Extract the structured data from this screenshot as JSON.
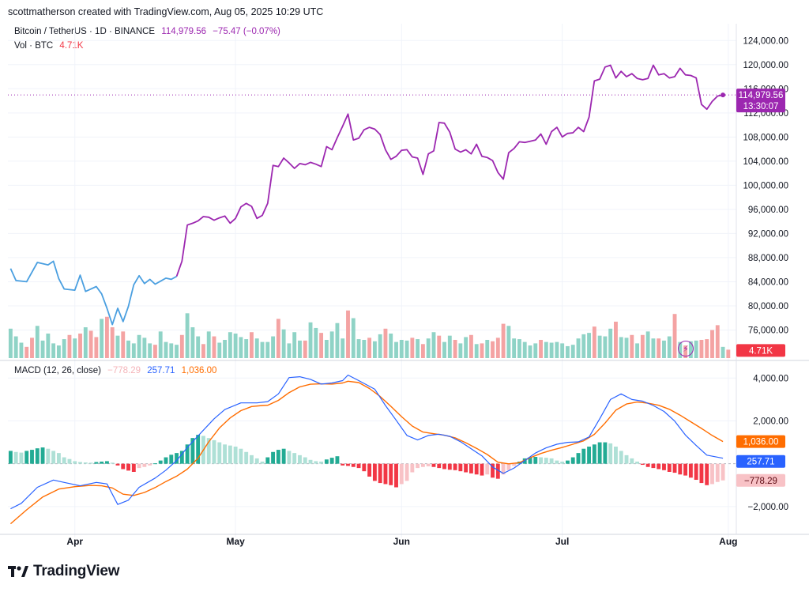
{
  "header": {
    "credit": "scottmatherson created with TradingView.com, Aug 05, 2025 10:29 UTC"
  },
  "legend": {
    "symbol": "Bitcoin / TetherUS · 1D · BINANCE",
    "last": "114,979.56",
    "change": "−75.47 (−0.07%)",
    "vol_label": "Vol · BTC",
    "vol_value": "4.71K",
    "macd_label": "MACD (12, 26, close)",
    "macd_hist": "−778.29",
    "macd_line": "257.71",
    "macd_signal": "1,036.00"
  },
  "badges": {
    "price": "114,979.56",
    "countdown": "13:30:07",
    "volume": "4.71K",
    "signal": "1,036.00",
    "macd": "257.71",
    "hist": "−778.29"
  },
  "colors": {
    "price_blue": "#4a9fe0",
    "price_purple": "#9c27b0",
    "vol_up": "#8fd3c6",
    "vol_down": "#f4a3a3",
    "macd_line": "#2962ff",
    "signal_line": "#ff6d00",
    "hist_up_strong": "#22ab94",
    "hist_up_weak": "#aee0d6",
    "hist_down_strong": "#f23645",
    "hist_down_weak": "#f8c2c6"
  },
  "logo": {
    "text": "TradingView"
  },
  "chart_data": {
    "type": "line",
    "title": "Bitcoin / TetherUS · 1D · BINANCE",
    "x_start": "2025-03-20",
    "x_end": "2025-08-05",
    "time_labels": [
      {
        "label": "Apr",
        "index": 12
      },
      {
        "label": "May",
        "index": 42
      },
      {
        "label": "Jun",
        "index": 73
      },
      {
        "label": "Jul",
        "index": 103
      },
      {
        "label": "Aug",
        "index": 134
      }
    ],
    "price_axis": {
      "ylim": [
        72000,
        126000
      ],
      "ticks": [
        "124,000.00",
        "120,000.00",
        "116,000.00",
        "112,000.00",
        "108,000.00",
        "104,000.00",
        "100,000.00",
        "96,000.00",
        "92,000.00",
        "88,000.00",
        "84,000.00",
        "80,000.00",
        "76,000.00"
      ],
      "tick_values": [
        124000,
        120000,
        116000,
        112000,
        108000,
        104000,
        100000,
        96000,
        92000,
        88000,
        84000,
        80000,
        76000
      ]
    },
    "macd_axis": {
      "ylim": [
        -3000,
        4600
      ],
      "ticks": [
        "4,000.00",
        "2,000.00",
        "−2,000.00"
      ],
      "tick_values": [
        4000,
        2000,
        -2000
      ]
    },
    "price_anchors": [
      [
        0,
        86200
      ],
      [
        1,
        84200
      ],
      [
        3,
        84000
      ],
      [
        5,
        87200
      ],
      [
        7,
        86800
      ],
      [
        8,
        87400
      ],
      [
        9,
        84500
      ],
      [
        10,
        82800
      ],
      [
        12,
        82600
      ],
      [
        13,
        85100
      ],
      [
        14,
        82400
      ],
      [
        16,
        83200
      ],
      [
        17,
        82000
      ],
      [
        18,
        79600
      ],
      [
        19,
        76900
      ],
      [
        20,
        79600
      ],
      [
        21,
        77400
      ],
      [
        22,
        79900
      ],
      [
        23,
        83500
      ],
      [
        24,
        85000
      ],
      [
        25,
        83700
      ],
      [
        26,
        84400
      ],
      [
        27,
        83600
      ],
      [
        28,
        84100
      ],
      [
        29,
        84600
      ],
      [
        30,
        84400
      ],
      [
        31,
        84900
      ],
      [
        32,
        87400
      ],
      [
        33,
        93400
      ],
      [
        34,
        93700
      ],
      [
        35,
        94100
      ],
      [
        36,
        94800
      ],
      [
        37,
        94700
      ],
      [
        38,
        94200
      ],
      [
        39,
        94600
      ],
      [
        40,
        94900
      ],
      [
        41,
        93700
      ],
      [
        42,
        94500
      ],
      [
        43,
        96400
      ],
      [
        44,
        97000
      ],
      [
        45,
        96500
      ],
      [
        46,
        94500
      ],
      [
        47,
        95000
      ],
      [
        48,
        97000
      ],
      [
        49,
        103300
      ],
      [
        50,
        103100
      ],
      [
        51,
        104500
      ],
      [
        52,
        103700
      ],
      [
        53,
        102800
      ],
      [
        54,
        103600
      ],
      [
        55,
        103400
      ],
      [
        56,
        103800
      ],
      [
        57,
        103500
      ],
      [
        58,
        103100
      ],
      [
        59,
        106400
      ],
      [
        60,
        105900
      ],
      [
        61,
        107900
      ],
      [
        62,
        109800
      ],
      [
        63,
        111800
      ],
      [
        64,
        107500
      ],
      [
        65,
        107800
      ],
      [
        66,
        109200
      ],
      [
        67,
        109600
      ],
      [
        68,
        109300
      ],
      [
        69,
        108400
      ],
      [
        70,
        105900
      ],
      [
        71,
        104300
      ],
      [
        72,
        104800
      ],
      [
        73,
        105800
      ],
      [
        74,
        105900
      ],
      [
        75,
        104700
      ],
      [
        76,
        104500
      ],
      [
        77,
        101800
      ],
      [
        78,
        105200
      ],
      [
        79,
        105700
      ],
      [
        80,
        110400
      ],
      [
        81,
        110300
      ],
      [
        82,
        108800
      ],
      [
        83,
        106000
      ],
      [
        84,
        105500
      ],
      [
        85,
        105900
      ],
      [
        86,
        105200
      ],
      [
        87,
        106800
      ],
      [
        88,
        104800
      ],
      [
        89,
        104600
      ],
      [
        90,
        104100
      ],
      [
        91,
        102100
      ],
      [
        92,
        101000
      ],
      [
        93,
        105400
      ],
      [
        94,
        106100
      ],
      [
        95,
        107200
      ],
      [
        96,
        107100
      ],
      [
        97,
        107300
      ],
      [
        98,
        107500
      ],
      [
        99,
        108500
      ],
      [
        100,
        106800
      ],
      [
        101,
        108900
      ],
      [
        102,
        109600
      ],
      [
        103,
        108000
      ],
      [
        104,
        108600
      ],
      [
        105,
        108700
      ],
      [
        106,
        109600
      ],
      [
        107,
        108900
      ],
      [
        108,
        111300
      ],
      [
        109,
        117300
      ],
      [
        110,
        117600
      ],
      [
        111,
        119600
      ],
      [
        112,
        119900
      ],
      [
        113,
        117800
      ],
      [
        114,
        118900
      ],
      [
        115,
        118000
      ],
      [
        116,
        118500
      ],
      [
        117,
        117700
      ],
      [
        118,
        117500
      ],
      [
        119,
        117700
      ],
      [
        120,
        119900
      ],
      [
        121,
        118300
      ],
      [
        122,
        118500
      ],
      [
        123,
        117800
      ],
      [
        124,
        118000
      ],
      [
        125,
        119400
      ],
      [
        126,
        118300
      ],
      [
        127,
        118200
      ],
      [
        128,
        117800
      ],
      [
        129,
        113400
      ],
      [
        130,
        112600
      ],
      [
        131,
        113900
      ],
      [
        132,
        114800
      ],
      [
        133,
        114979
      ]
    ],
    "color_switch_index": 31,
    "volume_bars": [
      4.2,
      3.1,
      2.2,
      1.6,
      2.9,
      4.6,
      2.5,
      3.5,
      2.1,
      1.8,
      2.7,
      3.3,
      2.8,
      3.5,
      4.4,
      3.9,
      3.0,
      5.6,
      5.9,
      4.4,
      3.2,
      3.8,
      2.5,
      2.1,
      3.3,
      2.9,
      2.1,
      1.9,
      3.8,
      2.3,
      2.1,
      1.9,
      3.3,
      6.4,
      4.4,
      3.1,
      2.0,
      3.8,
      3.1,
      2.2,
      2.6,
      3.7,
      3.5,
      3.0,
      2.7,
      3.7,
      2.8,
      2.3,
      2.3,
      3.1,
      5.6,
      4.1,
      2.1,
      3.7,
      2.5,
      2.5,
      5.1,
      4.3,
      3.6,
      2.6,
      3.8,
      5.0,
      2.8,
      6.8,
      5.7,
      2.7,
      2.6,
      2.9,
      2.4,
      3.4,
      4.2,
      3.5,
      2.3,
      2.6,
      2.5,
      2.9,
      2.7,
      2.0,
      2.8,
      3.7,
      3.2,
      2.3,
      3.2,
      2.6,
      2.1,
      3.0,
      3.3,
      2.0,
      2.1,
      2.6,
      2.4,
      2.9,
      4.9,
      4.6,
      2.8,
      2.7,
      2.3,
      1.8,
      2.1,
      2.6,
      2.3,
      2.2,
      2.3,
      2.1,
      1.7,
      1.9,
      2.8,
      3.4,
      3.6,
      4.5,
      3.2,
      3.1,
      4.2,
      5.2,
      3.0,
      2.9,
      3.3,
      2.1,
      3.3,
      3.8,
      2.8,
      2.8,
      2.5,
      3.1,
      6.3,
      2.3,
      1.8,
      2.4,
      2.5,
      2.6,
      2.7,
      4.0,
      4.7,
      1.6,
      1.2
    ],
    "volume_down": [
      3,
      4,
      11,
      13,
      15,
      16,
      18,
      19,
      21,
      27,
      32,
      36,
      38,
      45,
      50,
      55,
      58,
      63,
      67,
      70,
      75,
      77,
      80,
      83,
      86,
      88,
      90,
      91,
      92,
      99,
      109,
      113,
      116,
      118,
      121,
      124,
      126,
      129,
      130,
      131,
      132,
      134
    ],
    "volume_ylim": [
      0,
      7
    ],
    "macd_anchors": [
      [
        0,
        -2100
      ],
      [
        2,
        -1850
      ],
      [
        5,
        -1100
      ],
      [
        8,
        -760
      ],
      [
        10,
        -870
      ],
      [
        13,
        -1030
      ],
      [
        16,
        -870
      ],
      [
        18,
        -940
      ],
      [
        20,
        -1900
      ],
      [
        22,
        -1700
      ],
      [
        24,
        -1100
      ],
      [
        27,
        -670
      ],
      [
        29,
        -300
      ],
      [
        31,
        150
      ],
      [
        33,
        760
      ],
      [
        35,
        1300
      ],
      [
        38,
        2100
      ],
      [
        40,
        2530
      ],
      [
        43,
        2840
      ],
      [
        46,
        2840
      ],
      [
        48,
        2900
      ],
      [
        50,
        3260
      ],
      [
        52,
        4020
      ],
      [
        54,
        4060
      ],
      [
        56,
        3940
      ],
      [
        58,
        3720
      ],
      [
        60,
        3770
      ],
      [
        62,
        3880
      ],
      [
        63,
        4140
      ],
      [
        65,
        3880
      ],
      [
        68,
        3480
      ],
      [
        70,
        2720
      ],
      [
        72,
        2030
      ],
      [
        74,
        1320
      ],
      [
        76,
        1110
      ],
      [
        78,
        1320
      ],
      [
        80,
        1380
      ],
      [
        82,
        1280
      ],
      [
        84,
        1030
      ],
      [
        86,
        700
      ],
      [
        88,
        370
      ],
      [
        90,
        -150
      ],
      [
        92,
        -450
      ],
      [
        94,
        -200
      ],
      [
        96,
        150
      ],
      [
        98,
        500
      ],
      [
        100,
        740
      ],
      [
        102,
        910
      ],
      [
        104,
        1000
      ],
      [
        106,
        1020
      ],
      [
        108,
        1250
      ],
      [
        110,
        2100
      ],
      [
        112,
        3000
      ],
      [
        114,
        3260
      ],
      [
        116,
        3000
      ],
      [
        118,
        2920
      ],
      [
        120,
        2720
      ],
      [
        122,
        2440
      ],
      [
        124,
        1990
      ],
      [
        126,
        1340
      ],
      [
        128,
        850
      ],
      [
        130,
        400
      ],
      [
        133,
        257
      ]
    ],
    "signal_anchors": [
      [
        0,
        -2800
      ],
      [
        3,
        -2150
      ],
      [
        6,
        -1550
      ],
      [
        9,
        -1180
      ],
      [
        12,
        -1070
      ],
      [
        15,
        -1010
      ],
      [
        17,
        -1030
      ],
      [
        19,
        -1130
      ],
      [
        21,
        -1420
      ],
      [
        23,
        -1480
      ],
      [
        25,
        -1340
      ],
      [
        27,
        -1110
      ],
      [
        29,
        -830
      ],
      [
        31,
        -580
      ],
      [
        33,
        -250
      ],
      [
        35,
        260
      ],
      [
        37,
        1020
      ],
      [
        39,
        1670
      ],
      [
        41,
        2140
      ],
      [
        43,
        2480
      ],
      [
        45,
        2670
      ],
      [
        47,
        2720
      ],
      [
        48,
        2730
      ],
      [
        50,
        2960
      ],
      [
        52,
        3320
      ],
      [
        54,
        3590
      ],
      [
        56,
        3710
      ],
      [
        58,
        3730
      ],
      [
        60,
        3720
      ],
      [
        62,
        3770
      ],
      [
        63,
        3850
      ],
      [
        65,
        3790
      ],
      [
        67,
        3510
      ],
      [
        69,
        3140
      ],
      [
        71,
        2680
      ],
      [
        73,
        2200
      ],
      [
        75,
        1760
      ],
      [
        77,
        1480
      ],
      [
        79,
        1400
      ],
      [
        81,
        1330
      ],
      [
        83,
        1210
      ],
      [
        85,
        980
      ],
      [
        87,
        720
      ],
      [
        89,
        430
      ],
      [
        91,
        70
      ],
      [
        93,
        -5
      ],
      [
        95,
        50
      ],
      [
        97,
        280
      ],
      [
        99,
        480
      ],
      [
        101,
        630
      ],
      [
        103,
        760
      ],
      [
        105,
        910
      ],
      [
        107,
        1070
      ],
      [
        109,
        1370
      ],
      [
        111,
        1900
      ],
      [
        113,
        2500
      ],
      [
        115,
        2790
      ],
      [
        117,
        2880
      ],
      [
        119,
        2830
      ],
      [
        121,
        2730
      ],
      [
        123,
        2540
      ],
      [
        125,
        2270
      ],
      [
        127,
        1960
      ],
      [
        129,
        1650
      ],
      [
        131,
        1320
      ],
      [
        133,
        1036
      ]
    ],
    "macd_hist": [
      600,
      550,
      520,
      600,
      650,
      720,
      760,
      700,
      600,
      500,
      300,
      220,
      120,
      80,
      60,
      50,
      80,
      100,
      120,
      50,
      -80,
      -250,
      -320,
      -380,
      -200,
      -150,
      -80,
      20,
      150,
      300,
      420,
      500,
      600,
      900,
      1200,
      1350,
      1300,
      1200,
      1100,
      1000,
      900,
      850,
      800,
      700,
      550,
      400,
      250,
      100,
      300,
      550,
      650,
      700,
      600,
      500,
      400,
      300,
      180,
      120,
      100,
      200,
      280,
      350,
      -80,
      -100,
      -150,
      -200,
      -350,
      -600,
      -800,
      -900,
      -950,
      -1000,
      -1100,
      -950,
      -800,
      -400,
      -200,
      -150,
      -120,
      -150,
      -200,
      -250,
      -280,
      -300,
      -350,
      -400,
      -450,
      -500,
      -550,
      -500,
      -650,
      -700,
      -500,
      -300,
      -100,
      100,
      250,
      300,
      320,
      300,
      280,
      250,
      150,
      100,
      150,
      300,
      500,
      700,
      800,
      900,
      1000,
      1000,
      950,
      800,
      600,
      400,
      250,
      100,
      -50,
      -150,
      -200,
      -250,
      -300,
      -380,
      -420,
      -500,
      -550,
      -650,
      -750,
      -900,
      -1000,
      -950,
      -850,
      -778
    ]
  }
}
